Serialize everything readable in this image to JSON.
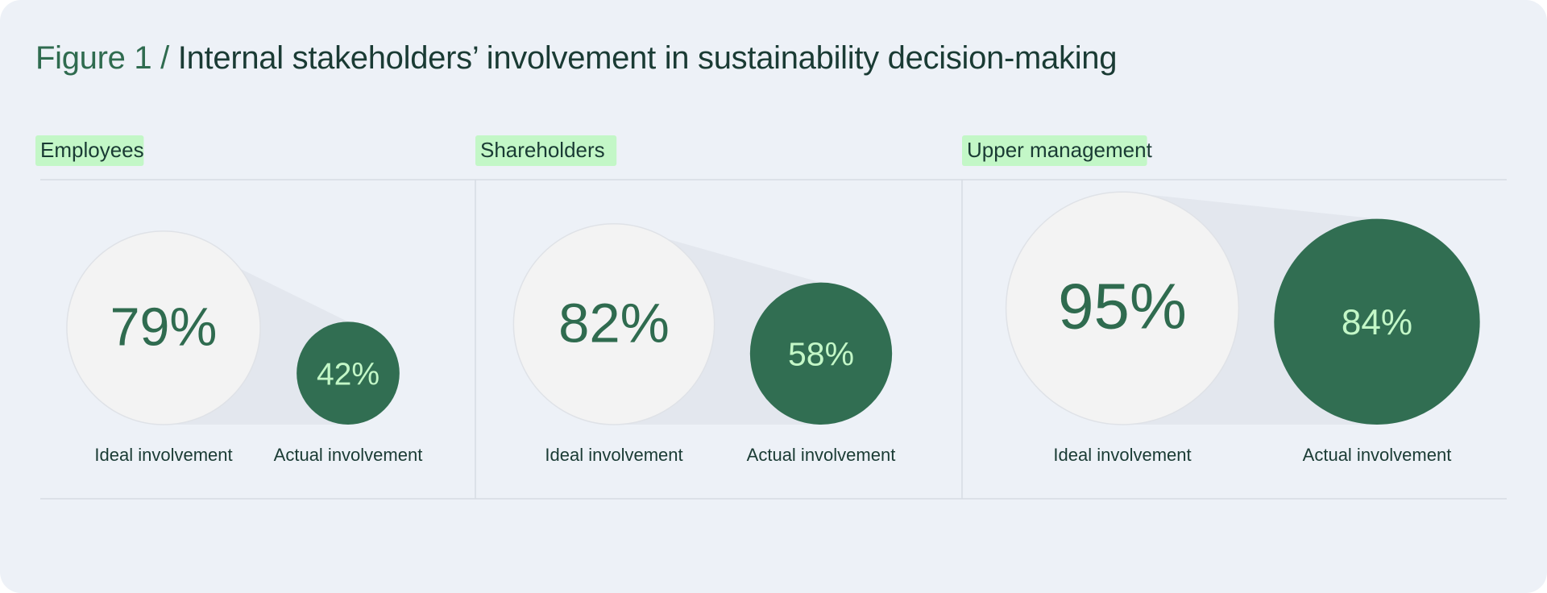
{
  "title": {
    "prefix": "Figure 1 /",
    "text": "Internal stakeholders’ involvement in sustainability decision-making"
  },
  "colors": {
    "background": "#edf1f7",
    "ideal_fill": "#f3f3f3",
    "actual_fill": "#316e52",
    "label_bg": "#c3f7c7",
    "actual_text": "#c3f7c7",
    "ideal_text": "#2f6b4f",
    "dark_text": "#1a3b34",
    "rule": "#d7dce3",
    "connector": "#e3e7ee"
  },
  "chart_data": {
    "type": "bubble-comparison",
    "title": "Figure 1 / Internal stakeholders’ involvement in sustainability decision-making",
    "unit": "%",
    "series": [
      {
        "name": "Ideal involvement",
        "values": [
          79,
          82,
          95
        ]
      },
      {
        "name": "Actual involvement",
        "values": [
          42,
          58,
          84
        ]
      }
    ],
    "groups": [
      {
        "name": "Employees",
        "ideal": 79,
        "actual": 42,
        "ideal_label": "79%",
        "actual_label": "42%",
        "ideal_caption": "Ideal involvement",
        "actual_caption": "Actual involvement"
      },
      {
        "name": "Shareholders",
        "ideal": 82,
        "actual": 58,
        "ideal_label": "82%",
        "actual_label": "58%",
        "ideal_caption": "Ideal involvement",
        "actual_caption": "Actual involvement"
      },
      {
        "name": "Upper management",
        "ideal": 95,
        "actual": 84,
        "ideal_label": "95%",
        "actual_label": "84%",
        "ideal_caption": "Ideal involvement",
        "actual_caption": "Actual involvement"
      }
    ]
  }
}
